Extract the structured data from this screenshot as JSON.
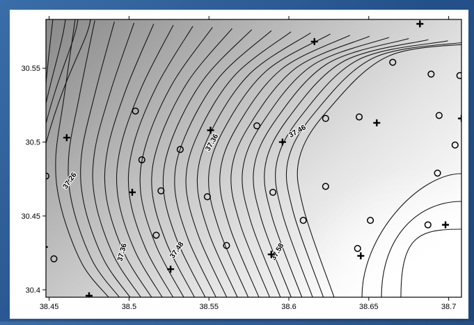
{
  "chart_data": {
    "type": "contour",
    "title": "",
    "xlabel": "",
    "ylabel": "",
    "xlim": [
      38.448,
      38.708
    ],
    "ylim": [
      30.395,
      30.583
    ],
    "x_ticks": [
      38.45,
      38.5,
      38.55,
      38.6,
      38.65,
      38.7
    ],
    "x_tick_labels": [
      "38.45",
      "38.5",
      "38.55",
      "38.6",
      "38.65",
      "38.7"
    ],
    "y_ticks": [
      30.4,
      30.45,
      30.5,
      30.55
    ],
    "y_tick_labels": [
      "30.4",
      "30.45",
      "30.5",
      "30.55"
    ],
    "grid": false,
    "contour_labels": [
      {
        "text": "37.26",
        "x": 38.464,
        "y": 30.473,
        "angle": -55
      },
      {
        "text": "37.36",
        "x": 38.553,
        "y": 30.499,
        "angle": -60
      },
      {
        "text": "37.46",
        "x": 38.606,
        "y": 30.506,
        "angle": -30
      },
      {
        "text": "37.36",
        "x": 38.497,
        "y": 30.425,
        "angle": -75
      },
      {
        "text": "37.48",
        "x": 38.531,
        "y": 30.426,
        "angle": -55
      },
      {
        "text": "37.58",
        "x": 38.594,
        "y": 30.425,
        "angle": -60
      }
    ],
    "series": [
      {
        "marker": "circle",
        "points": [
          [
            38.448,
            30.477
          ],
          [
            38.453,
            30.421
          ],
          [
            38.504,
            30.521
          ],
          [
            38.508,
            30.488
          ],
          [
            38.52,
            30.467
          ],
          [
            38.517,
            30.437
          ],
          [
            38.532,
            30.495
          ],
          [
            38.549,
            30.463
          ],
          [
            38.561,
            30.43
          ],
          [
            38.58,
            30.511
          ],
          [
            38.59,
            30.466
          ],
          [
            38.609,
            30.447
          ],
          [
            38.623,
            30.516
          ],
          [
            38.623,
            30.47
          ],
          [
            38.644,
            30.517
          ],
          [
            38.643,
            30.428
          ],
          [
            38.651,
            30.447
          ],
          [
            38.665,
            30.554
          ],
          [
            38.689,
            30.546
          ],
          [
            38.694,
            30.518
          ],
          [
            38.693,
            30.479
          ],
          [
            38.687,
            30.444
          ],
          [
            38.704,
            30.498
          ],
          [
            38.707,
            30.545
          ]
        ]
      },
      {
        "marker": "cross",
        "points": [
          [
            38.461,
            30.503
          ],
          [
            38.447,
            30.429
          ],
          [
            38.475,
            30.396
          ],
          [
            38.502,
            30.466
          ],
          [
            38.526,
            30.414
          ],
          [
            38.551,
            30.508
          ],
          [
            38.596,
            30.5
          ],
          [
            38.589,
            30.424
          ],
          [
            38.616,
            30.568
          ],
          [
            38.645,
            30.423
          ],
          [
            38.655,
            30.513
          ],
          [
            38.682,
            30.58
          ],
          [
            38.698,
            30.444
          ],
          [
            38.708,
            30.516
          ]
        ]
      }
    ]
  }
}
